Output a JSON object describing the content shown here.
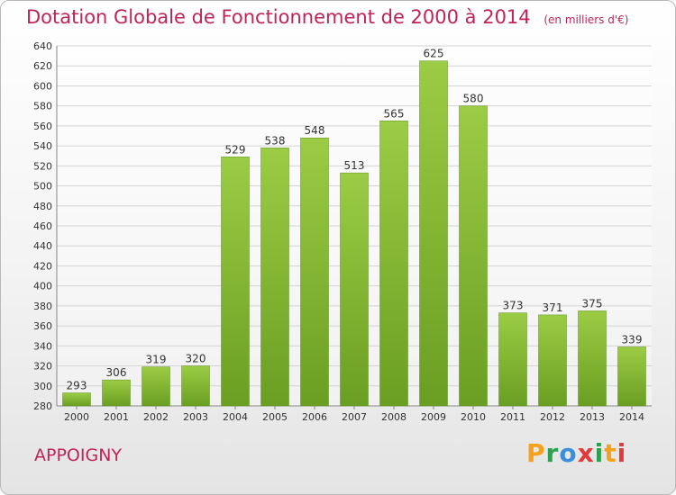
{
  "header": {
    "title": "Dotation Globale de Fonctionnement de 2000 à 2014",
    "unit": "(en milliers d'€)"
  },
  "place": "APPOIGNY",
  "logo": {
    "letters": [
      "P",
      "r",
      "o",
      "x",
      "i",
      "t",
      "i"
    ]
  },
  "colors": {
    "accent": "#c0235a",
    "bar_top": "#9ccc45",
    "bar_bottom": "#6a9e22",
    "grid": "#d4d4d4"
  },
  "chart_data": {
    "type": "bar",
    "title": "Dotation Globale de Fonctionnement de 2000 à 2014",
    "subtitle": "(en milliers d'€)",
    "categories": [
      "2000",
      "2001",
      "2002",
      "2003",
      "2004",
      "2005",
      "2006",
      "2007",
      "2008",
      "2009",
      "2010",
      "2011",
      "2012",
      "2013",
      "2014"
    ],
    "values": [
      293,
      306,
      319,
      320,
      529,
      538,
      548,
      513,
      565,
      625,
      580,
      373,
      371,
      375,
      339
    ],
    "ylim": [
      280,
      640
    ],
    "yticks": [
      280,
      300,
      320,
      340,
      360,
      380,
      400,
      420,
      440,
      460,
      480,
      500,
      520,
      540,
      560,
      580,
      600,
      620,
      640
    ],
    "grid": true,
    "legend": "none"
  }
}
